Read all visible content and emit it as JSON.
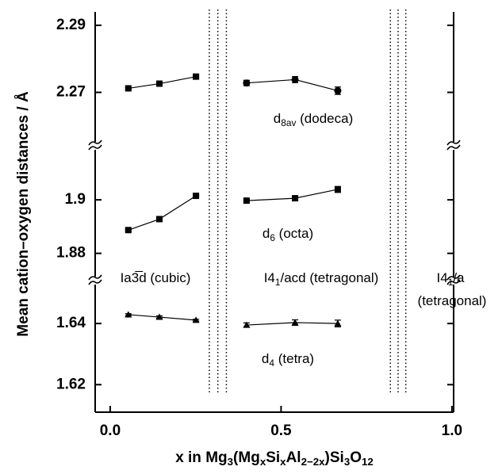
{
  "chart_data": {
    "type": "line",
    "ylabel": "Mean cation–oxygen distances / Å",
    "xlabel": [
      {
        "text": "x in Mg"
      },
      {
        "text": "3",
        "sub": true
      },
      {
        "text": "(Mg"
      },
      {
        "text": "x",
        "sub": true
      },
      {
        "text": "Si"
      },
      {
        "text": "x",
        "sub": true
      },
      {
        "text": "Al"
      },
      {
        "text": "2−2x",
        "sub": true
      },
      {
        "text": ")Si"
      },
      {
        "text": "3",
        "sub": true
      },
      {
        "text": "O"
      },
      {
        "text": "12",
        "sub": true
      }
    ],
    "xlim": [
      -0.044,
      1.005
    ],
    "xticks": [
      {
        "value": 0,
        "label": "0.0"
      },
      0.5,
      {
        "value": 1,
        "label": "1.0"
      }
    ],
    "boundaries": [
      [
        0.29,
        0.34
      ],
      [
        0.82,
        0.865
      ]
    ],
    "phases": [
      [
        {
          "text": "Ia3̅d (cubic)"
        }
      ],
      [
        {
          "text": "I4"
        },
        {
          "text": "1",
          "sub": true
        },
        {
          "text": "/acd (tetragonal)"
        }
      ],
      [
        {
          "text": "I4"
        },
        {
          "text": "1",
          "sub": true
        },
        {
          "text": "/a"
        }
      ],
      [
        {
          "text": "(tetragonal)"
        }
      ]
    ],
    "panels": [
      {
        "label": [
          {
            "text": "d"
          },
          {
            "text": "8av",
            "sub": true
          },
          {
            "text": " (dodeca)"
          }
        ],
        "ylim": [
          2.255,
          2.294
        ],
        "yticks": [
          2.27,
          2.29
        ],
        "series": [
          {
            "marker": "square",
            "x": [
              0.053,
              0.144,
              0.251
            ],
            "values": [
              2.2712,
              2.2726,
              2.2747
            ],
            "errors": [
              0.0003,
              0.0004,
              0.0003
            ]
          },
          {
            "marker": "circle",
            "x": [
              0.399,
              0.541,
              0.666
            ],
            "values": [
              2.2728,
              2.2738,
              2.2705
            ],
            "errors": [
              0.0008,
              0.0009,
              0.0011
            ]
          }
        ]
      },
      {
        "label": [
          {
            "text": "d"
          },
          {
            "text": "6",
            "sub": true
          },
          {
            "text": " (octa)"
          }
        ],
        "ylim": [
          1.871,
          1.919
        ],
        "yticks": [
          1.88,
          1.9
        ],
        "series": [
          {
            "marker": "square",
            "x": [
              0.053,
              0.144,
              0.251
            ],
            "values": [
              1.8887,
              1.8928,
              1.9015
            ],
            "errors": [
              0.0003,
              0.0004,
              0.0003
            ]
          },
          {
            "marker": "square",
            "x": [
              0.399,
              0.541,
              0.666
            ],
            "values": [
              1.8997,
              1.9006,
              1.9039
            ],
            "errors": [
              0.0006,
              0.0008,
              0.0011
            ]
          }
        ]
      },
      {
        "label": [
          {
            "text": "d"
          },
          {
            "text": "4",
            "sub": true
          },
          {
            "text": " (tetra)"
          }
        ],
        "ylim": [
          1.611,
          1.653
        ],
        "yticks": [
          1.62,
          1.64
        ],
        "series": [
          {
            "marker": "triangle",
            "x": [
              0.053,
              0.144,
              0.251
            ],
            "values": [
              1.6429,
              1.6421,
              1.6411
            ],
            "errors": [
              0.0003,
              0.0004,
              0.0003
            ]
          },
          {
            "marker": "triangle",
            "x": [
              0.399,
              0.541,
              0.666
            ],
            "values": [
              1.6395,
              1.6403,
              1.64
            ],
            "errors": [
              0.0007,
              0.0009,
              0.0011
            ]
          }
        ]
      }
    ]
  }
}
